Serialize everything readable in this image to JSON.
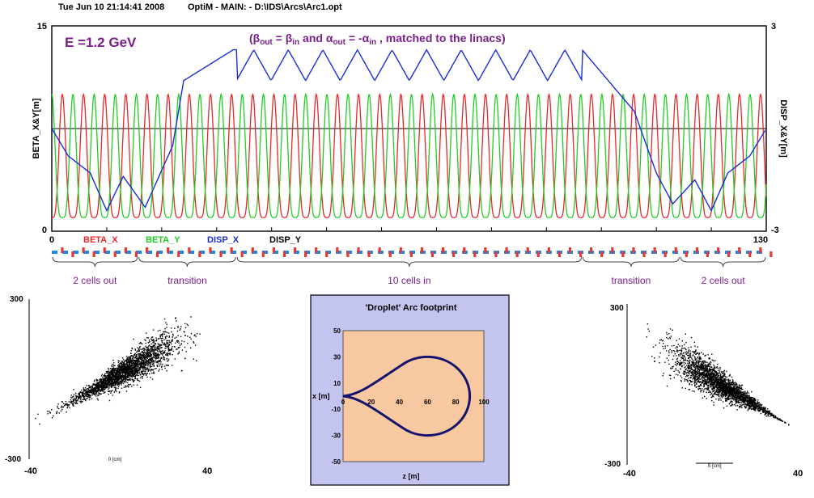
{
  "header": {
    "timestamp": "Tue Jun 10 21:14:41 2008",
    "app": "OptiM - MAIN: - D:\\IDS\\Arcs\\Arc1.opt"
  },
  "optics_plot": {
    "energy_label": "E =1.2 GeV",
    "y_left_label": "BETA_X&Y[m]",
    "y_right_label": "DISP_X&Y[m]",
    "y_left_ticks": [
      "15",
      "0"
    ],
    "y_right_ticks": [
      "3",
      "-3"
    ],
    "x_ticks": [
      "0",
      "130"
    ]
  },
  "annotation": {
    "open": "(",
    "beta": "β",
    "out": "out",
    "eq": " = ",
    "in": "in",
    "and": " and ",
    "alpha": "α",
    "neg": "-",
    "tail": " , matched to the linacs)"
  },
  "legend": [
    {
      "label": "BETA_X",
      "color": "#e8282a"
    },
    {
      "label": "BETA_Y",
      "color": "#22cc22"
    },
    {
      "label": "DISP_X",
      "color": "#1a2ed8"
    },
    {
      "label": "DISP_Y",
      "color": "#000000"
    }
  ],
  "sections": [
    {
      "label": "2 cells out",
      "from": 0,
      "to": 15.7
    },
    {
      "label": "transition",
      "from": 15.7,
      "to": 33.6
    },
    {
      "label": "10 cells in",
      "from": 33.6,
      "to": 96.5
    },
    {
      "label": "transition",
      "from": 96.5,
      "to": 114.3
    },
    {
      "label": "2 cells out",
      "from": 114.3,
      "to": 130
    }
  ],
  "left_phase": {
    "y_top": "300",
    "y_bottom": "-300",
    "x_left": "-40",
    "x_right": "40",
    "x_axis_label": "0 [cm]"
  },
  "right_phase": {
    "y_top": "300",
    "y_bottom": "-300",
    "x_left": "-40",
    "x_right": "40",
    "x_axis_label": "S [cm]"
  },
  "footprint": {
    "title": "'Droplet' Arc footprint",
    "xlabel": "z [m]",
    "ylabel": "x [m]",
    "x_ticks": [
      "0",
      "20",
      "40",
      "60",
      "80",
      "100"
    ],
    "y_ticks": [
      "50",
      "30",
      "10",
      "-10",
      "-30",
      "-50"
    ]
  },
  "colors": {
    "beta_x": "#e8282a",
    "beta_y": "#22cc22",
    "disp_x": "#1a2ed8",
    "disp_y": "#000000",
    "annotation": "#7a1f8a",
    "lattice_bend": "#1e88e5",
    "lattice_quad": "#e53935",
    "footprint_frame": "#c4c4f0",
    "footprint_plot": "#f8c8a0",
    "footprint_curve": "#14146e"
  },
  "chart_data": [
    {
      "type": "line",
      "title": "",
      "xlabel": "",
      "ylabel": "BETA_X&Y[m]",
      "y2label": "DISP_X&Y[m]",
      "xlim": [
        0,
        130
      ],
      "ylim": [
        0,
        15
      ],
      "y2lim": [
        -3,
        3
      ],
      "grid": false,
      "legend": "bottom-left",
      "series": [
        {
          "name": "BETA_X",
          "axis": "left",
          "description": "oscillating betatron function, about 33 periods, approx. 1-10 m",
          "period": 3.85,
          "phase": 0.0,
          "min": 1.0,
          "max": 10.0
        },
        {
          "name": "BETA_Y",
          "axis": "left",
          "description": "oscillating betatron function, out of phase with BETA_X",
          "period": 3.85,
          "phase": 0.5,
          "min": 1.0,
          "max": 10.0
        },
        {
          "name": "DISP_X",
          "axis": "right",
          "x": [
            0,
            3,
            7,
            10,
            13,
            17,
            22,
            24,
            33,
            96.5,
            106,
            110,
            113,
            117,
            120,
            123,
            127,
            130
          ],
          "y": [
            0.0,
            -0.8,
            -1.3,
            -2.4,
            -1.4,
            -2.3,
            -0.5,
            1.4,
            2.3,
            2.3,
            0.5,
            -1.3,
            -2.2,
            -1.5,
            -2.4,
            -1.3,
            -0.8,
            0.0
          ],
          "ripple_in_cells": {
            "from": 33.6,
            "to": 96.5,
            "cells": 10,
            "min": 1.4,
            "max": 2.3
          }
        },
        {
          "name": "DISP_Y",
          "axis": "right",
          "x": [
            0,
            130
          ],
          "y": [
            0,
            0
          ]
        }
      ]
    },
    {
      "type": "scatter",
      "title": "",
      "xlabel": "0 [cm]",
      "xlim": [
        -40,
        40
      ],
      "ylim": [
        -300,
        300
      ],
      "description": "teardrop-shaped particle distribution, tilted up to the right",
      "cluster": {
        "center_x": 3,
        "center_y": 30,
        "spread_x": 12,
        "spread_y": 45,
        "tilt": "up-right"
      }
    },
    {
      "type": "scatter",
      "title": "",
      "xlabel": "S [cm]",
      "xlim": [
        -40,
        40
      ],
      "ylim": [
        -300,
        300
      ],
      "description": "particle distribution tilted down to the right",
      "cluster": {
        "center_x": 5,
        "center_y": 0,
        "spread_x": 12,
        "spread_y": 45,
        "tilt": "down-right"
      }
    },
    {
      "type": "line",
      "title": "'Droplet' Arc footprint",
      "xlabel": "z [m]",
      "ylabel": "x [m]",
      "xlim": [
        0,
        100
      ],
      "ylim": [
        -50,
        50
      ],
      "grid": false,
      "series": [
        {
          "name": "",
          "description": "droplet-shaped closed arc: circle of radius 30 m centred at z=60 m joined to two curves meeting at the origin",
          "circle_center": [
            60,
            0
          ],
          "circle_radius": 30,
          "tip": [
            0,
            0
          ]
        }
      ]
    }
  ]
}
